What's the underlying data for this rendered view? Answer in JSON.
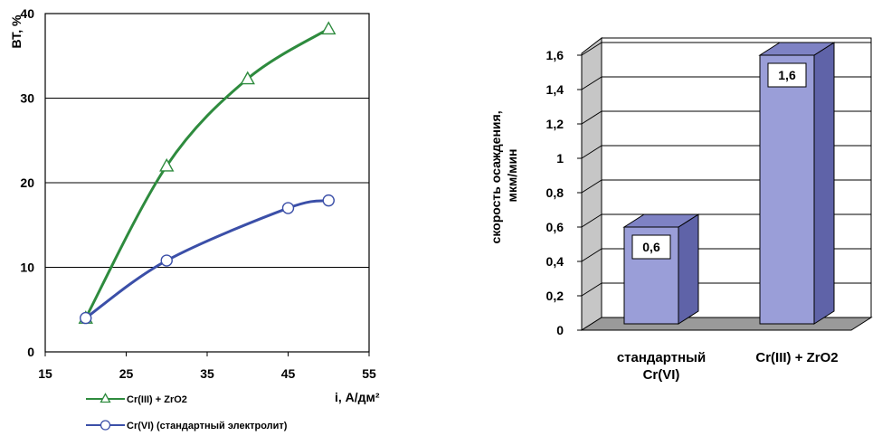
{
  "chart_data": [
    {
      "type": "line",
      "title": "",
      "xlabel": "i, А/дм²",
      "ylabel": "ВТ, %",
      "xlim": [
        15,
        55
      ],
      "ylim": [
        0,
        40
      ],
      "x_ticks": [
        "15",
        "25",
        "35",
        "45",
        "55"
      ],
      "y_ticks": [
        "0",
        "10",
        "20",
        "30",
        "40"
      ],
      "grid": "horizontal",
      "legend_position": "bottom-left",
      "series": [
        {
          "name": "Cr(III) + ZrO2",
          "color": "#2e8b3e",
          "marker": "triangle",
          "x": [
            20,
            30,
            40,
            50
          ],
          "y": [
            4.0,
            22.0,
            32.3,
            38.2
          ]
        },
        {
          "name": "Cr(VI) (стандартный электролит)",
          "color": "#3b4fa8",
          "marker": "circle",
          "x": [
            20,
            30,
            45,
            50
          ],
          "y": [
            4.0,
            10.8,
            17.0,
            17.9
          ]
        }
      ]
    },
    {
      "type": "bar",
      "title": "",
      "xlabel": "",
      "ylabel_line1": "скорость осаждения,",
      "ylabel_line2": "мкм/мин",
      "ylim": [
        0,
        1.6
      ],
      "y_ticks": [
        "0",
        "0,2",
        "0,4",
        "0,6",
        "0,8",
        "1",
        "1,2",
        "1,4",
        "1,6"
      ],
      "grid": "horizontal",
      "categories": [
        [
          "стандартный",
          "Cr(VI)"
        ],
        [
          "Cr(III) + ZrO2"
        ]
      ],
      "values": [
        0.6,
        1.6
      ],
      "data_labels": [
        "0,6",
        "1,6"
      ],
      "bar_color": "#9a9ed8"
    }
  ]
}
